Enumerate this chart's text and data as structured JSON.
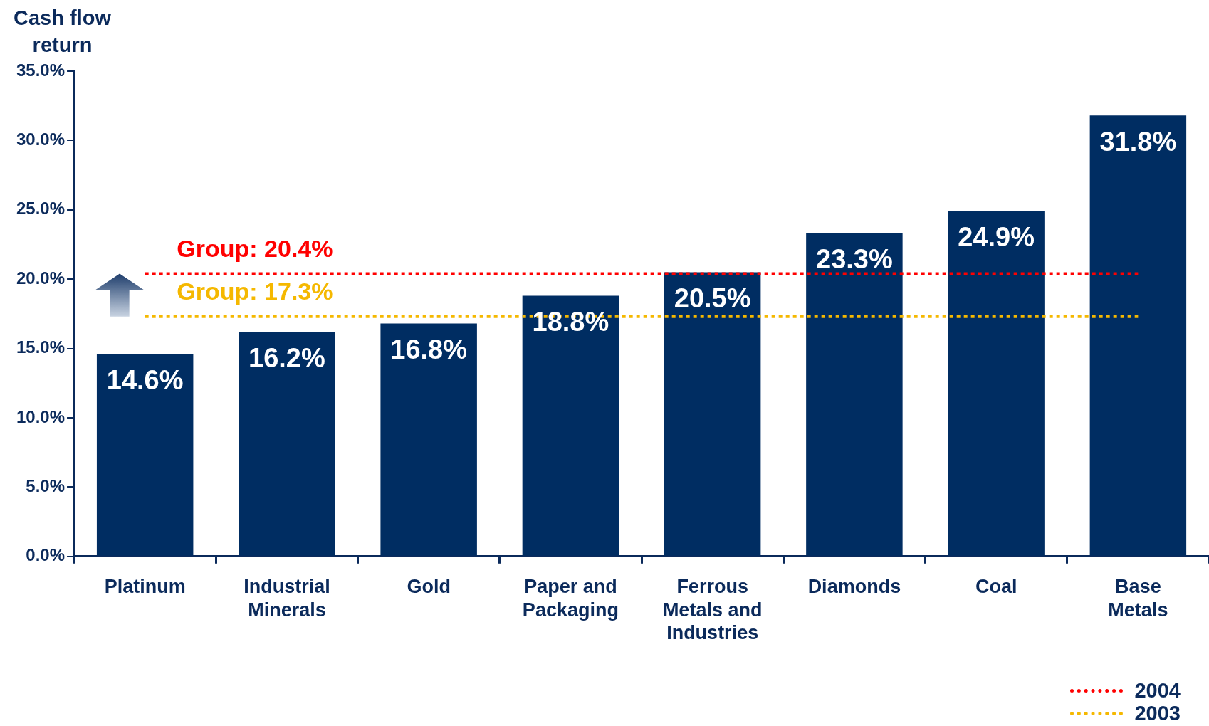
{
  "chart_data": {
    "type": "bar",
    "ylabel": "Cash flow return",
    "categories": [
      "Platinum",
      "Industrial Minerals",
      "Gold",
      "Paper and Packaging",
      "Ferrous Metals and Industries",
      "Diamonds",
      "Coal",
      "Base Metals"
    ],
    "series": [
      {
        "color": "#002d62",
        "values": [
          14.6,
          16.2,
          16.8,
          18.8,
          20.5,
          23.3,
          24.9,
          31.8
        ],
        "value_labels": [
          "14.6%",
          "16.2%",
          "16.8%",
          "18.8%",
          "20.5%",
          "23.3%",
          "24.9%",
          "31.8%"
        ]
      },
      {
        "type": "line",
        "name": "2004",
        "color": "#ff0000",
        "line_style": "dotted",
        "values": [
          20.4,
          20.4,
          20.4,
          20.4,
          20.4,
          20.4,
          20.4,
          20.4
        ]
      },
      {
        "type": "line",
        "name": "2003",
        "color": "#f5b800",
        "line_style": "dotted",
        "values": [
          17.3,
          17.3,
          17.3,
          17.3,
          17.3,
          17.3,
          17.3,
          17.3
        ]
      }
    ],
    "annotations": [
      {
        "text": "Group: 20.4%",
        "x": "Industrial Minerals",
        "y": 20.4
      },
      {
        "text": "Group: 17.3%",
        "x": "Industrial Minerals",
        "y": 17.3
      }
    ],
    "ylim": [
      0,
      35
    ],
    "yticks": [
      {
        "value": 0,
        "label": "0.0%"
      },
      {
        "value": 5,
        "label": "5.0%"
      },
      {
        "value": 10,
        "label": "10.0%"
      },
      {
        "value": 15,
        "label": "15.0%"
      },
      {
        "value": 20,
        "label": "20.0%"
      },
      {
        "value": 25,
        "label": "25.0%"
      },
      {
        "value": 30,
        "label": "30.0%"
      },
      {
        "value": 35,
        "label": "35.0%"
      }
    ],
    "grid": false,
    "legend": "bottom right",
    "marker": "none"
  }
}
